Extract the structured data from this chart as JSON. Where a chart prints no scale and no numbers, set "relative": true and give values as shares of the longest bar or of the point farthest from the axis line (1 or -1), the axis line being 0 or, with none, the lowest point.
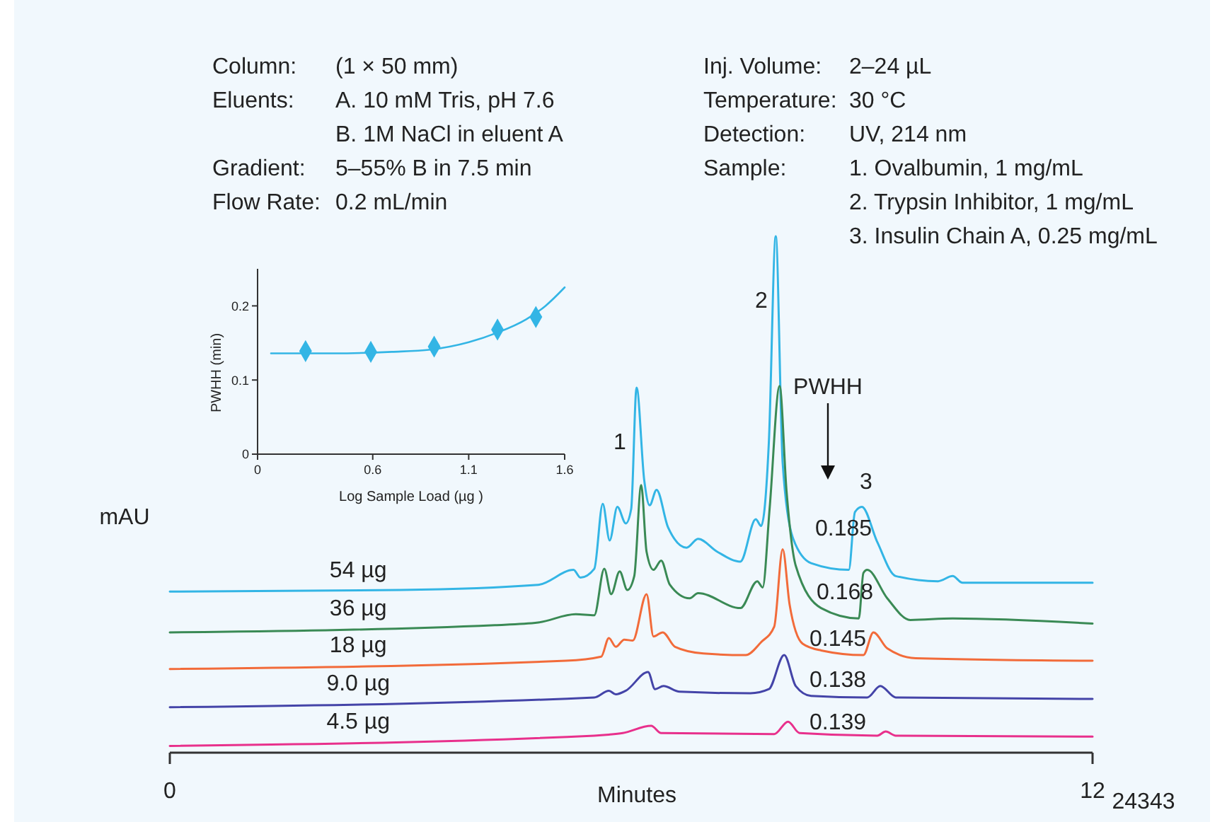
{
  "chart_data": [
    {
      "type": "other",
      "annotations": [
        "Column:\t(1 × 50 mm)",
        "Eluents:\tA. 10 mM Tris, pH 7.6",
        "\tB. 1M NaCl in eluent A",
        "Gradient:\t5–55% B in 7.5 min",
        "Flow Rate:\t0.2 mL/min"
      ]
    },
    {
      "type": "other",
      "annotations": [
        "Inj. Volume:\t2–24 µL",
        "Temperature:\t30 °C",
        "Detection:\tUV, 214 nm",
        "Sample:\t1. Ovalbumin, 1 mg/mL",
        "\t2. Trypsin Inhibitor, 1 mg/mL",
        "\t3. Insulin Chain A, 0.25 mg/mL"
      ]
    },
    {
      "type": "line",
      "xlabel": "Minutes",
      "ylabel": "mAU",
      "relative": true,
      "xlim": [
        0,
        12
      ],
      "xticks": [
        0,
        12
      ],
      "series": [
        {
          "name": "54 µg",
          "color": "#33b5e5",
          "x": [
            0,
            3,
            4.79,
            5.25,
            5.34,
            5.52,
            5.63,
            5.72,
            5.82,
            5.93,
            6.0,
            6.07,
            6.17,
            6.24,
            6.33,
            6.48,
            6.72,
            6.87,
            7.12,
            7.42,
            7.62,
            7.69,
            7.79,
            7.88,
            7.97,
            8.1,
            8.34,
            8.83,
            8.91,
            9.0,
            9.2,
            9.44,
            9.99,
            10.18,
            10.31,
            12
          ],
          "values": [
            0.312,
            0.315,
            0.325,
            0.354,
            0.339,
            0.356,
            0.482,
            0.411,
            0.476,
            0.444,
            0.472,
            0.707,
            0.527,
            0.479,
            0.509,
            0.436,
            0.397,
            0.414,
            0.389,
            0.37,
            0.452,
            0.439,
            0.6,
            1,
            0.561,
            0.417,
            0.367,
            0.354,
            0.466,
            0.476,
            0.408,
            0.342,
            0.332,
            0.342,
            0.329,
            0.329
          ]
        },
        {
          "name": "36 µg",
          "color": "#3a8a55",
          "x": [
            0,
            4.23,
            4.79,
            5.28,
            5.52,
            5.65,
            5.74,
            5.85,
            5.95,
            6.04,
            6.13,
            6.2,
            6.29,
            6.39,
            6.5,
            6.76,
            6.87,
            7.42,
            7.64,
            7.71,
            7.8,
            7.93,
            8.02,
            8.14,
            8.47,
            8.96,
            9.02,
            9.07,
            9.33,
            9.63,
            10.18,
            12
          ],
          "values": [
            0.233,
            0.247,
            0.252,
            0.268,
            0.266,
            0.356,
            0.307,
            0.351,
            0.315,
            0.342,
            0.518,
            0.389,
            0.354,
            0.372,
            0.326,
            0.299,
            0.309,
            0.28,
            0.332,
            0.32,
            0.472,
            0.71,
            0.507,
            0.362,
            0.28,
            0.26,
            0.348,
            0.354,
            0.299,
            0.257,
            0.26,
            0.25
          ]
        },
        {
          "name": "18 µg",
          "color": "#f26b3a",
          "x": [
            0,
            5.15,
            5.61,
            5.71,
            5.8,
            5.91,
            6.02,
            6.2,
            6.29,
            6.41,
            6.57,
            6.94,
            7.49,
            7.69,
            7.86,
            7.97,
            8.06,
            8.23,
            8.47,
            9.02,
            9.15,
            9.33,
            9.7,
            12
          ],
          "values": [
            0.162,
            0.178,
            0.186,
            0.222,
            0.205,
            0.219,
            0.217,
            0.307,
            0.225,
            0.233,
            0.205,
            0.192,
            0.189,
            0.214,
            0.244,
            0.394,
            0.287,
            0.211,
            0.198,
            0.189,
            0.233,
            0.202,
            0.183,
            0.178
          ]
        },
        {
          "name": "9.0 µg",
          "color": "#4444a8",
          "x": [
            0,
            5.52,
            5.71,
            5.8,
            5.93,
            6.22,
            6.31,
            6.42,
            6.63,
            7.55,
            7.79,
            7.99,
            8.14,
            8.34,
            9.07,
            9.24,
            9.44,
            12
          ],
          "values": [
            0.088,
            0.107,
            0.12,
            0.113,
            0.12,
            0.156,
            0.123,
            0.129,
            0.118,
            0.115,
            0.123,
            0.189,
            0.129,
            0.11,
            0.107,
            0.129,
            0.107,
            0.104
          ]
        },
        {
          "name": "4.5 µg",
          "color": "#e8308c",
          "x": [
            0,
            5.52,
            5.71,
            5.89,
            6.26,
            6.39,
            7.86,
            8.04,
            8.19,
            9.2,
            9.31,
            9.44,
            12
          ],
          "values": [
            0.013,
            0.033,
            0.035,
            0.038,
            0.052,
            0.038,
            0.036,
            0.06,
            0.038,
            0.033,
            0.041,
            0.033,
            0.031
          ]
        }
      ],
      "annotations": [
        "PWHH",
        "1",
        "2",
        "3",
        "0.185",
        "0.168",
        "0.145",
        "0.138",
        "0.139",
        "24343"
      ]
    },
    {
      "type": "scatter",
      "xlabel": "Log Sample Load (µg )",
      "ylabel": "PWHH (min)",
      "xlim": [
        0,
        1.6
      ],
      "xticks": [
        0,
        0.6,
        1.1,
        1.6
      ],
      "ylim": [
        0,
        0.25
      ],
      "yticks": [
        0,
        0.1,
        0.2
      ],
      "series": [
        {
          "type": "scatter",
          "marker": "diamond",
          "color": "#33b5e5",
          "x": [
            0.25,
            0.59,
            0.92,
            1.25,
            1.45
          ],
          "values": [
            0.139,
            0.138,
            0.145,
            0.168,
            0.185
          ]
        },
        {
          "type": "line",
          "color": "#33b5e5",
          "x": [
            0.07,
            0.4,
            0.7,
            0.9,
            1.1,
            1.25,
            1.4,
            1.5,
            1.6
          ],
          "values": [
            0.136,
            0.136,
            0.138,
            0.141,
            0.151,
            0.164,
            0.182,
            0.2,
            0.225
          ]
        }
      ]
    }
  ]
}
